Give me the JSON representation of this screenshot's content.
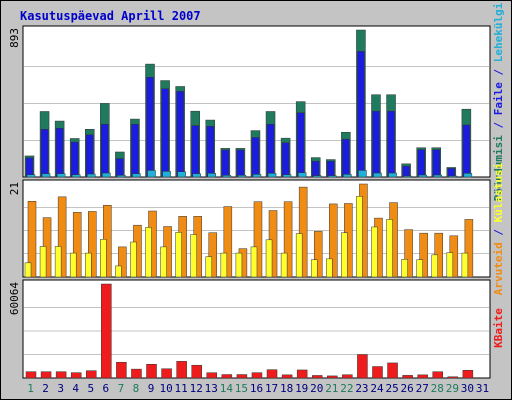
{
  "chart_data": {
    "type": "bar",
    "title": "Kasutuspäevad Aprill 2007",
    "categories": [
      "1",
      "2",
      "3",
      "4",
      "5",
      "6",
      "7",
      "8",
      "9",
      "10",
      "11",
      "12",
      "13",
      "14",
      "15",
      "16",
      "17",
      "18",
      "19",
      "20",
      "21",
      "22",
      "23",
      "24",
      "25",
      "26",
      "27",
      "28",
      "29",
      "30",
      "31"
    ],
    "weekend_days": [
      1,
      7,
      8,
      14,
      15,
      21,
      22,
      28,
      29
    ],
    "panels": [
      {
        "id": "top",
        "max_label": "893",
        "ymax": 893,
        "series": [
          {
            "name": "Pöördumisi",
            "color": "#1f7a5e",
            "values": [
              128,
              398,
              340,
              234,
              290,
              447,
              152,
              352,
              686,
              586,
              550,
              400,
              346,
              174,
              174,
              282,
              398,
              236,
              458,
              118,
              106,
              272,
              893,
              500,
              500,
              80,
              178,
              178,
              58,
              412,
              0
            ]
          },
          {
            "name": "Faile",
            "color": "#1c1ce0",
            "values": [
              116,
              290,
              296,
              212,
              256,
              320,
              112,
              320,
              606,
              536,
              520,
              312,
              308,
              164,
              164,
              240,
              320,
              208,
              390,
              96,
              96,
              230,
              763,
              400,
              400,
              66,
              166,
              166,
              52,
              316,
              0
            ]
          },
          {
            "name": "Lehekülgi",
            "color": "#20b0d8",
            "values": [
              14,
              20,
              20,
              14,
              18,
              24,
              10,
              20,
              40,
              34,
              32,
              20,
              22,
              10,
              10,
              16,
              22,
              14,
              26,
              8,
              8,
              16,
              40,
              24,
              24,
              6,
              12,
              12,
              4,
              22,
              0
            ]
          }
        ]
      },
      {
        "id": "mid",
        "max_label": "21",
        "ymax": 21,
        "series": [
          {
            "name": "Arvuteid",
            "color": "#f08c14",
            "values": [
              17.1,
              13.4,
              18.1,
              14.6,
              14.8,
              16.2,
              6.8,
              11.7,
              14.9,
              11.4,
              13.7,
              13.7,
              10.0,
              15.9,
              6.4,
              17.0,
              15.0,
              17.0,
              20.3,
              10.3,
              16.5,
              16.6,
              21.0,
              13.3,
              16.8,
              10.7,
              9.9,
              9.9,
              9.3,
              13.0,
              0
            ]
          },
          {
            "name": "Külastusi",
            "color": "#ffff30",
            "values": [
              3.2,
              6.9,
              6.9,
              5.4,
              5.4,
              8.5,
              2.5,
              7.9,
              11.2,
              6.8,
              10.1,
              9.6,
              4.6,
              5.4,
              5.4,
              6.8,
              8.4,
              5.4,
              9.8,
              3.9,
              4.1,
              10.0,
              18.2,
              11.3,
              13.0,
              4.0,
              3.9,
              5.0,
              5.5,
              5.4,
              0
            ]
          }
        ]
      },
      {
        "id": "bot",
        "max_label": "60064",
        "ymax": 60064,
        "series": [
          {
            "name": "KBaite",
            "color": "#ee1c1c",
            "values": [
              4032,
              4032,
              4032,
              3416,
              4670,
              60064,
              10088,
              5676,
              8784,
              5908,
              10640,
              8176,
              3388,
              2212,
              2212,
              3416,
              5324,
              2016,
              5140,
              1624,
              1344,
              2100,
              15008,
              7336,
              9632,
              1680,
              2016,
              4032,
              784,
              4928,
              0
            ]
          }
        ]
      }
    ],
    "right_axis": {
      "top_parts": [
        {
          "text": "Pöördumisi",
          "color": "#1f7a5e"
        },
        {
          "text": " / ",
          "color": "#1c1ce0"
        },
        {
          "text": "Faile",
          "color": "#1c1ce0"
        },
        {
          "text": " / ",
          "color": "#1c1ce0"
        },
        {
          "text": "Lehekülgi",
          "color": "#20b0d8"
        }
      ],
      "mid_parts": [
        {
          "text": "Arvuteid",
          "color": "#f08c14"
        },
        {
          "text": " / ",
          "color": "#1c1ce0"
        },
        {
          "text": "Külastusi",
          "color": "#ffff30"
        }
      ],
      "bot_parts": [
        {
          "text": "KBaite",
          "color": "#ee1c1c"
        }
      ]
    },
    "colors": {
      "title": "#0000cc",
      "day_normal": "#000080",
      "day_weekend": "#1f7a5e",
      "border": "#000000",
      "plot_bg": "#ffffff",
      "frame_bg": "#c4c4c4",
      "grid": "#888888"
    },
    "grid": true
  }
}
